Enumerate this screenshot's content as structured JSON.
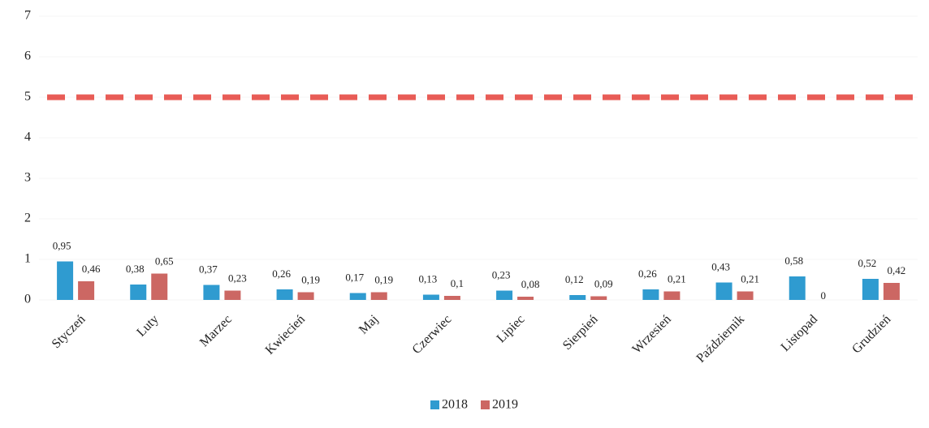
{
  "chart_data": {
    "type": "bar",
    "categories": [
      "Styczeń",
      "Luty",
      "Marzec",
      "Kwiecień",
      "Maj",
      "Czerwiec",
      "Lipiec",
      "Sierpień",
      "Wrzesień",
      "Październik",
      "Listopad",
      "Grudzień"
    ],
    "series": [
      {
        "name": "2018",
        "color": "#2f9bd0",
        "values": [
          0.95,
          0.38,
          0.37,
          0.26,
          0.17,
          0.13,
          0.23,
          0.12,
          0.26,
          0.43,
          0.58,
          0.52
        ],
        "value_labels": [
          "0,95",
          "0,38",
          "0,37",
          "0,26",
          "0,17",
          "0,13",
          "0,23",
          "0,12",
          "0,26",
          "0,43",
          "0,58",
          "0,52"
        ]
      },
      {
        "name": "2019",
        "color": "#cc6763",
        "values": [
          0.46,
          0.65,
          0.23,
          0.19,
          0.19,
          0.1,
          0.08,
          0.09,
          0.21,
          0.21,
          0,
          0.42
        ],
        "value_labels": [
          "0,46",
          "0,65",
          "0,23",
          "0,19",
          "0,19",
          "0,1",
          "0,08",
          "0,09",
          "0,21",
          "0,21",
          "0",
          "0,42"
        ]
      }
    ],
    "reference_line": {
      "value": 5,
      "color": "#e85c56"
    },
    "ylim": [
      0,
      7
    ],
    "yticks": [
      0,
      1,
      2,
      3,
      4,
      5,
      6,
      7
    ],
    "legend": "bottom"
  }
}
